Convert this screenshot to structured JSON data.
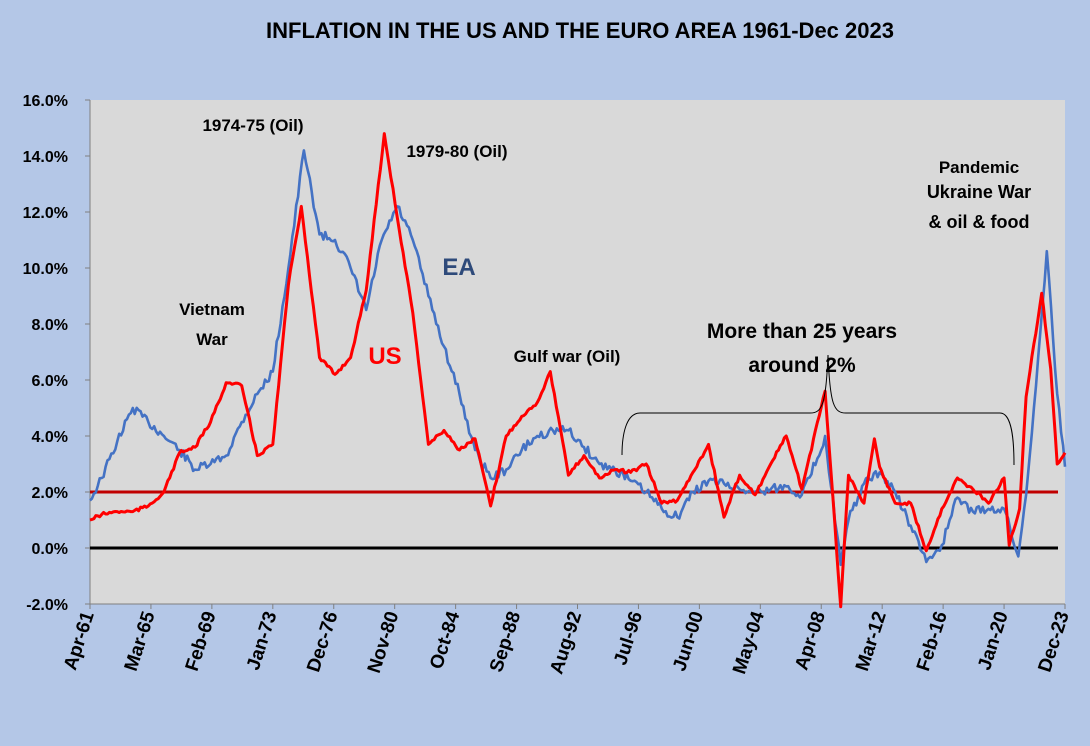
{
  "chart_data": {
    "type": "line",
    "title": "INFLATION IN THE US AND THE EURO AREA 1961-Dec 2023",
    "xlabel": "",
    "ylabel": "",
    "ylim": [
      -0.02,
      0.16
    ],
    "y_ticks": [
      "-2.0%",
      "0.0%",
      "2.0%",
      "4.0%",
      "6.0%",
      "8.0%",
      "10.0%",
      "12.0%",
      "14.0%",
      "16.0%"
    ],
    "x_ticks": [
      "Apr-61",
      "Mar-65",
      "Feb-69",
      "Jan-73",
      "Dec-76",
      "Nov-80",
      "Oct-84",
      "Sep-88",
      "Aug-92",
      "Jul-96",
      "Jun-00",
      "May-04",
      "Apr-08",
      "Mar-12",
      "Feb-16",
      "Jan-20",
      "Dec-23"
    ],
    "x_range": [
      "Apr-61",
      "Dec-23"
    ],
    "grid": false,
    "series": [
      {
        "name": "EA",
        "color": "#4472c4",
        "points": [
          [
            "Apr-61",
            0.017
          ],
          [
            "Jan-62",
            0.025
          ],
          [
            "Jan-63",
            0.038
          ],
          [
            "Jan-64",
            0.05
          ],
          [
            "Jan-65",
            0.045
          ],
          [
            "Jan-66",
            0.04
          ],
          [
            "Jan-67",
            0.035
          ],
          [
            "Jan-68",
            0.028
          ],
          [
            "Jan-69",
            0.03
          ],
          [
            "Jan-70",
            0.033
          ],
          [
            "Jan-71",
            0.045
          ],
          [
            "Jan-72",
            0.055
          ],
          [
            "Jan-73",
            0.063
          ],
          [
            "Jan-74",
            0.1
          ],
          [
            "Jan-75",
            0.142
          ],
          [
            "Jan-76",
            0.112
          ],
          [
            "Jan-77",
            0.11
          ],
          [
            "Jan-78",
            0.1
          ],
          [
            "Jan-79",
            0.085
          ],
          [
            "Jan-80",
            0.11
          ],
          [
            "Jan-81",
            0.122
          ],
          [
            "Jan-82",
            0.11
          ],
          [
            "Jan-83",
            0.09
          ],
          [
            "Jan-84",
            0.072
          ],
          [
            "Jan-85",
            0.055
          ],
          [
            "Jan-86",
            0.035
          ],
          [
            "Jan-87",
            0.025
          ],
          [
            "Jan-88",
            0.028
          ],
          [
            "Jan-89",
            0.035
          ],
          [
            "Jan-90",
            0.04
          ],
          [
            "Jan-91",
            0.042
          ],
          [
            "Jan-92",
            0.042
          ],
          [
            "Jan-93",
            0.036
          ],
          [
            "Jan-94",
            0.03
          ],
          [
            "Jan-95",
            0.028
          ],
          [
            "Jan-96",
            0.024
          ],
          [
            "Jan-97",
            0.02
          ],
          [
            "Jan-98",
            0.014
          ],
          [
            "Jan-99",
            0.011
          ],
          [
            "Jan-00",
            0.02
          ],
          [
            "Jan-01",
            0.024
          ],
          [
            "Jan-02",
            0.023
          ],
          [
            "Jan-03",
            0.021
          ],
          [
            "Jan-04",
            0.02
          ],
          [
            "Jan-05",
            0.021
          ],
          [
            "Jan-06",
            0.022
          ],
          [
            "Jan-07",
            0.019
          ],
          [
            "Jan-08",
            0.032
          ],
          [
            "Jul-08",
            0.04
          ],
          [
            "Jul-09",
            -0.006
          ],
          [
            "Jan-10",
            0.01
          ],
          [
            "Jan-11",
            0.023
          ],
          [
            "Jan-12",
            0.027
          ],
          [
            "Jan-13",
            0.02
          ],
          [
            "Jan-14",
            0.008
          ],
          [
            "Jan-15",
            -0.005
          ],
          [
            "Jan-16",
            0.001
          ],
          [
            "Jan-17",
            0.018
          ],
          [
            "Jan-18",
            0.013
          ],
          [
            "Jan-19",
            0.014
          ],
          [
            "Jan-20",
            0.014
          ],
          [
            "Dec-20",
            -0.003
          ],
          [
            "Jun-21",
            0.019
          ],
          [
            "Dec-21",
            0.05
          ],
          [
            "Oct-22",
            0.106
          ],
          [
            "Jun-23",
            0.055
          ],
          [
            "Dec-23",
            0.029
          ]
        ]
      },
      {
        "name": "US",
        "color": "#ff0000",
        "points": [
          [
            "Apr-61",
            0.01
          ],
          [
            "Jan-62",
            0.012
          ],
          [
            "Jan-63",
            0.013
          ],
          [
            "Jan-64",
            0.013
          ],
          [
            "Jan-65",
            0.015
          ],
          [
            "Jan-66",
            0.02
          ],
          [
            "Jan-67",
            0.034
          ],
          [
            "Jan-68",
            0.036
          ],
          [
            "Jan-69",
            0.045
          ],
          [
            "Jan-70",
            0.059
          ],
          [
            "Jan-71",
            0.058
          ],
          [
            "Jan-72",
            0.033
          ],
          [
            "Jan-73",
            0.037
          ],
          [
            "Jan-74",
            0.094
          ],
          [
            "Nov-74",
            0.122
          ],
          [
            "Jan-76",
            0.068
          ],
          [
            "Jan-77",
            0.062
          ],
          [
            "Jan-78",
            0.068
          ],
          [
            "Jan-79",
            0.092
          ],
          [
            "Mar-80",
            0.148
          ],
          [
            "Jan-81",
            0.118
          ],
          [
            "Jan-82",
            0.084
          ],
          [
            "Jan-83",
            0.037
          ],
          [
            "Jan-84",
            0.042
          ],
          [
            "Jan-85",
            0.035
          ],
          [
            "Jan-86",
            0.039
          ],
          [
            "Jan-87",
            0.015
          ],
          [
            "Jan-88",
            0.04
          ],
          [
            "Jan-89",
            0.047
          ],
          [
            "Jan-90",
            0.052
          ],
          [
            "Nov-90",
            0.063
          ],
          [
            "Jan-92",
            0.026
          ],
          [
            "Jan-93",
            0.033
          ],
          [
            "Jan-94",
            0.025
          ],
          [
            "Jan-95",
            0.028
          ],
          [
            "Jan-96",
            0.027
          ],
          [
            "Jan-97",
            0.03
          ],
          [
            "Jan-98",
            0.016
          ],
          [
            "Jan-99",
            0.017
          ],
          [
            "Jan-00",
            0.027
          ],
          [
            "Jan-01",
            0.037
          ],
          [
            "Jan-02",
            0.011
          ],
          [
            "Jan-03",
            0.026
          ],
          [
            "Jan-04",
            0.019
          ],
          [
            "Jan-05",
            0.03
          ],
          [
            "Jan-06",
            0.04
          ],
          [
            "Jan-07",
            0.021
          ],
          [
            "Jul-08",
            0.056
          ],
          [
            "Jul-09",
            -0.021
          ],
          [
            "Jan-10",
            0.026
          ],
          [
            "Jan-11",
            0.016
          ],
          [
            "Sep-11",
            0.039
          ],
          [
            "Jan-12",
            0.029
          ],
          [
            "Jan-13",
            0.016
          ],
          [
            "Jan-14",
            0.016
          ],
          [
            "Jan-15",
            -0.001
          ],
          [
            "Jan-16",
            0.014
          ],
          [
            "Jan-17",
            0.025
          ],
          [
            "Jan-18",
            0.021
          ],
          [
            "Jan-19",
            0.016
          ],
          [
            "Jan-20",
            0.025
          ],
          [
            "May-20",
            0.001
          ],
          [
            "Jan-21",
            0.014
          ],
          [
            "Jun-21",
            0.054
          ],
          [
            "Jun-22",
            0.091
          ],
          [
            "Jan-23",
            0.064
          ],
          [
            "Jun-23",
            0.03
          ],
          [
            "Dec-23",
            0.034
          ]
        ]
      }
    ],
    "reference_lines": [
      {
        "value": 0.02,
        "color": "#c00000"
      },
      {
        "value": 0.0,
        "color": "#000000"
      }
    ],
    "annotations": [
      {
        "text": "1974-75 (Oil)"
      },
      {
        "text": "1979-80 (Oil)"
      },
      {
        "text": "Vietnam"
      },
      {
        "text": "War"
      },
      {
        "text": "Gulf war (Oil)"
      },
      {
        "text": "More than 25 years"
      },
      {
        "text": "around 2%"
      },
      {
        "text": "Pandemic"
      },
      {
        "text": "Ukraine War"
      },
      {
        "text": "& oil & food"
      }
    ],
    "series_labels": [
      {
        "text": "EA",
        "color": "#2e4a7a"
      },
      {
        "text": "US",
        "color": "#ff0000"
      }
    ]
  }
}
